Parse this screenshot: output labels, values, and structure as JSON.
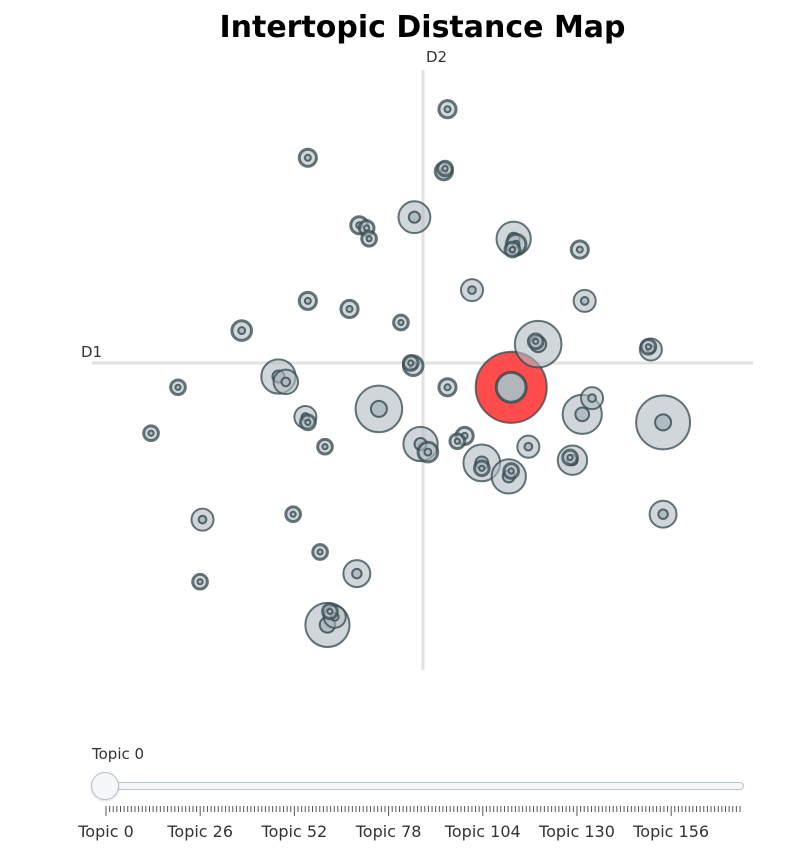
{
  "chart_data": {
    "type": "scatter",
    "title": "Intertopic Distance Map",
    "xlabel": "D1",
    "ylabel": "D2",
    "xlim": [
      -12,
      12
    ],
    "ylim": [
      -11,
      11
    ],
    "grid": false,
    "highlight_color": "#ff4d4d",
    "bubble_fill": "#b0bbc2",
    "bubble_stroke": "#33484d",
    "points": [
      {
        "x": 1.0,
        "y": 9.4,
        "r": 0.35
      },
      {
        "x": -4.7,
        "y": 7.6,
        "r": 0.35
      },
      {
        "x": 0.85,
        "y": 7.1,
        "r": 0.35
      },
      {
        "x": 0.9,
        "y": 7.2,
        "r": 0.3
      },
      {
        "x": -0.35,
        "y": 5.4,
        "r": 0.65
      },
      {
        "x": -2.6,
        "y": 5.1,
        "r": 0.35
      },
      {
        "x": -2.3,
        "y": 5.0,
        "r": 0.3
      },
      {
        "x": -2.2,
        "y": 4.6,
        "r": 0.3
      },
      {
        "x": 3.7,
        "y": 4.6,
        "r": 0.7
      },
      {
        "x": 3.65,
        "y": 4.2,
        "r": 0.3
      },
      {
        "x": 3.8,
        "y": 4.4,
        "r": 0.4
      },
      {
        "x": 6.4,
        "y": 4.2,
        "r": 0.35
      },
      {
        "x": 2.0,
        "y": 2.7,
        "r": 0.45
      },
      {
        "x": -4.7,
        "y": 2.3,
        "r": 0.35
      },
      {
        "x": -3.0,
        "y": 2.0,
        "r": 0.35
      },
      {
        "x": 6.6,
        "y": 2.3,
        "r": 0.45
      },
      {
        "x": -0.9,
        "y": 1.5,
        "r": 0.3
      },
      {
        "x": -7.4,
        "y": 1.2,
        "r": 0.4
      },
      {
        "x": 4.7,
        "y": 0.7,
        "r": 0.95
      },
      {
        "x": 4.6,
        "y": 0.8,
        "r": 0.3
      },
      {
        "x": 9.3,
        "y": 0.5,
        "r": 0.45
      },
      {
        "x": 9.2,
        "y": 0.6,
        "r": 0.3
      },
      {
        "x": -0.4,
        "y": -0.1,
        "r": 0.4
      },
      {
        "x": -0.5,
        "y": 0.0,
        "r": 0.3
      },
      {
        "x": -5.9,
        "y": -0.5,
        "r": 0.7
      },
      {
        "x": -5.6,
        "y": -0.7,
        "r": 0.5
      },
      {
        "x": -10.0,
        "y": -0.9,
        "r": 0.3
      },
      {
        "x": 1.0,
        "y": -0.9,
        "r": 0.35
      },
      {
        "x": 6.9,
        "y": -1.3,
        "r": 0.45
      },
      {
        "x": -1.8,
        "y": -1.7,
        "r": 0.95
      },
      {
        "x": 6.5,
        "y": -1.9,
        "r": 0.8
      },
      {
        "x": 9.8,
        "y": -2.2,
        "r": 1.1
      },
      {
        "x": -4.8,
        "y": -2.0,
        "r": 0.45
      },
      {
        "x": -4.7,
        "y": -2.2,
        "r": 0.3
      },
      {
        "x": -11.1,
        "y": -2.6,
        "r": 0.3
      },
      {
        "x": -0.1,
        "y": -3.0,
        "r": 0.7
      },
      {
        "x": 0.2,
        "y": -3.3,
        "r": 0.4
      },
      {
        "x": 1.7,
        "y": -2.7,
        "r": 0.35
      },
      {
        "x": 1.4,
        "y": -2.9,
        "r": 0.3
      },
      {
        "x": -4.0,
        "y": -3.1,
        "r": 0.3
      },
      {
        "x": 4.3,
        "y": -3.1,
        "r": 0.45
      },
      {
        "x": 2.4,
        "y": -3.7,
        "r": 0.75
      },
      {
        "x": 2.4,
        "y": -3.9,
        "r": 0.3
      },
      {
        "x": 3.5,
        "y": -4.2,
        "r": 0.7
      },
      {
        "x": 3.6,
        "y": -4.0,
        "r": 0.3
      },
      {
        "x": 6.1,
        "y": -3.6,
        "r": 0.6
      },
      {
        "x": 6.0,
        "y": -3.5,
        "r": 0.3
      },
      {
        "x": -9.0,
        "y": -5.8,
        "r": 0.45
      },
      {
        "x": -5.3,
        "y": -5.6,
        "r": 0.3
      },
      {
        "x": 9.8,
        "y": -5.6,
        "r": 0.55
      },
      {
        "x": -4.2,
        "y": -7.0,
        "r": 0.3
      },
      {
        "x": -2.7,
        "y": -7.8,
        "r": 0.55
      },
      {
        "x": -9.1,
        "y": -8.1,
        "r": 0.3
      },
      {
        "x": -3.9,
        "y": -9.7,
        "r": 0.9
      },
      {
        "x": -3.6,
        "y": -9.4,
        "r": 0.45
      },
      {
        "x": -3.8,
        "y": -9.2,
        "r": 0.3
      },
      {
        "x": 3.6,
        "y": -0.9,
        "r": 1.45,
        "selected": true
      }
    ]
  },
  "slider": {
    "current_label": "Topic 0",
    "value": 0,
    "range": [
      0,
      175
    ],
    "tick_labels": [
      "Topic 0",
      "Topic 26",
      "Topic 52",
      "Topic 78",
      "Topic 104",
      "Topic 130",
      "Topic 156"
    ]
  }
}
